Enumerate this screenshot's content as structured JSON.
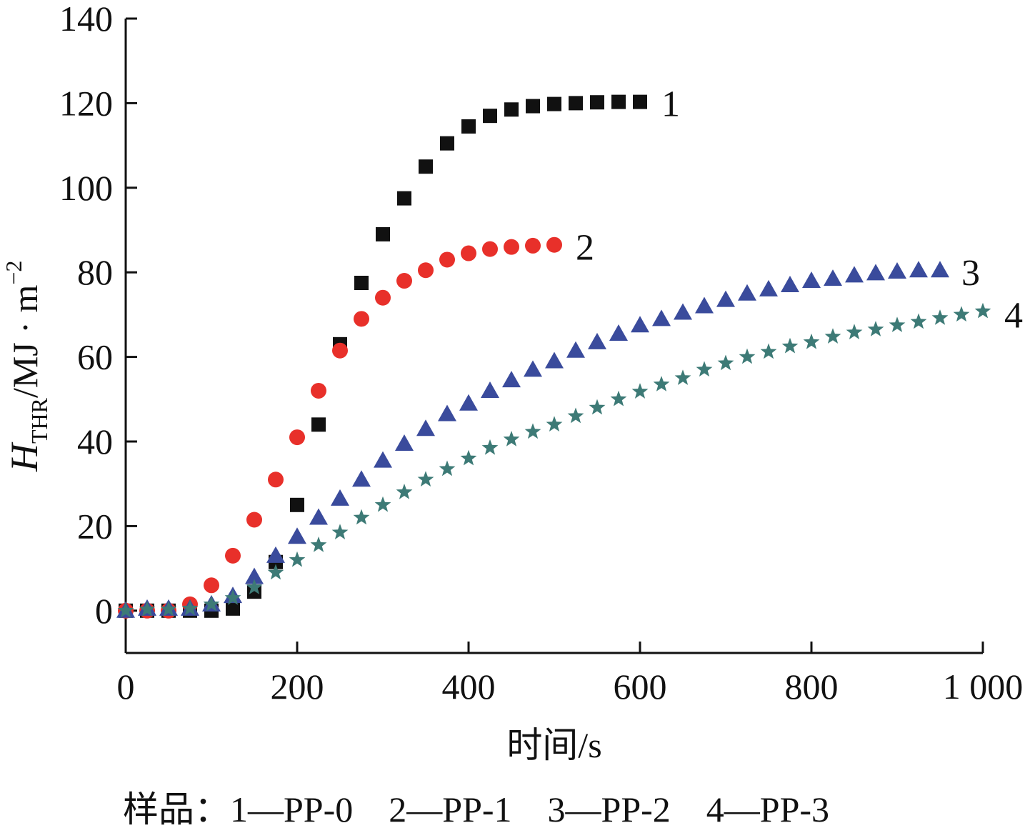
{
  "chart_data": {
    "type": "scatter",
    "xlabel": "时间/s",
    "ylabel": {
      "main": "H",
      "sub": "THR",
      "unit": "/MJ · m",
      "sup": "−2"
    },
    "xlim": [
      0,
      1000
    ],
    "ylim": [
      -10,
      140
    ],
    "x_ticks": [
      0,
      200,
      400,
      600,
      800,
      1000
    ],
    "x_tick_labels": [
      "0",
      "200",
      "400",
      "600",
      "800",
      "1 000"
    ],
    "y_ticks": [
      0,
      20,
      40,
      60,
      80,
      100,
      120,
      140
    ],
    "y_tick_labels": [
      "0",
      "20",
      "40",
      "60",
      "80",
      "100",
      "120",
      "140"
    ],
    "grid": false,
    "series": [
      {
        "name": "1",
        "marker": "square",
        "color": "#111111",
        "x": [
          0,
          25,
          50,
          75,
          100,
          125,
          150,
          175,
          200,
          225,
          250,
          275,
          300,
          325,
          350,
          375,
          400,
          425,
          450,
          475,
          500,
          525,
          550,
          575,
          600
        ],
        "y": [
          0,
          0,
          0,
          0,
          0,
          0.5,
          4.5,
          11.5,
          25,
          44,
          63,
          77.5,
          89,
          97.5,
          105,
          110.5,
          114.5,
          117,
          118.5,
          119.3,
          119.8,
          120,
          120.2,
          120.3,
          120.3
        ]
      },
      {
        "name": "2",
        "marker": "circle",
        "color": "#e8302a",
        "x": [
          0,
          25,
          50,
          75,
          100,
          125,
          150,
          175,
          200,
          225,
          250,
          275,
          300,
          325,
          350,
          375,
          400,
          425,
          450,
          475,
          500
        ],
        "y": [
          0,
          0,
          0,
          1.5,
          6,
          13,
          21.5,
          31,
          41,
          52,
          61.5,
          69,
          74,
          78,
          80.5,
          83,
          84.5,
          85.5,
          86,
          86.3,
          86.5
        ]
      },
      {
        "name": "3",
        "marker": "triangle",
        "color": "#3a4b9c",
        "x": [
          0,
          25,
          50,
          75,
          100,
          125,
          150,
          175,
          200,
          225,
          250,
          275,
          300,
          325,
          350,
          375,
          400,
          425,
          450,
          475,
          500,
          525,
          550,
          575,
          600,
          625,
          650,
          675,
          700,
          725,
          750,
          775,
          800,
          825,
          850,
          875,
          900,
          925,
          950
        ],
        "y": [
          0,
          0.5,
          0.5,
          0.5,
          1.5,
          3.5,
          8,
          13,
          17.5,
          22,
          26.5,
          31,
          35.5,
          39.5,
          43,
          46.5,
          49,
          52,
          54.5,
          57,
          59,
          61.5,
          63.5,
          65.5,
          67.5,
          69,
          70.5,
          72,
          73.5,
          75,
          76,
          77,
          78,
          78.5,
          79.3,
          79.8,
          80.2,
          80.5,
          80.5
        ]
      },
      {
        "name": "4",
        "marker": "star",
        "color": "#3d7a76",
        "x": [
          0,
          25,
          50,
          75,
          100,
          125,
          150,
          175,
          200,
          225,
          250,
          275,
          300,
          325,
          350,
          375,
          400,
          425,
          450,
          475,
          500,
          525,
          550,
          575,
          600,
          625,
          650,
          675,
          700,
          725,
          750,
          775,
          800,
          825,
          850,
          875,
          900,
          925,
          950,
          975,
          1000
        ],
        "y": [
          0,
          0.3,
          0.3,
          0.5,
          1.5,
          3,
          5.5,
          9,
          12,
          15.5,
          18.5,
          22,
          25,
          28,
          31,
          33.5,
          36,
          38.5,
          40.5,
          42.3,
          44,
          46,
          48,
          50,
          51.8,
          53.5,
          55,
          57,
          58.5,
          60,
          61.2,
          62.5,
          63.5,
          64.8,
          65.8,
          66.5,
          67.5,
          68.3,
          69.2,
          70,
          70.8
        ]
      }
    ],
    "series_labels": [
      {
        "text": "1",
        "x": 610,
        "y": 120
      },
      {
        "text": "2",
        "x": 510,
        "y": 86
      },
      {
        "text": "3",
        "x": 960,
        "y": 80
      },
      {
        "text": "4",
        "x": 1010,
        "y": 70
      }
    ],
    "caption": "样品：1—PP-0　2—PP-1　3—PP-2　4—PP-3"
  }
}
